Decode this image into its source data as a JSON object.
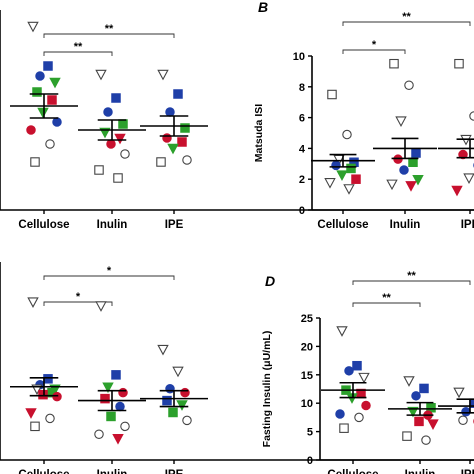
{
  "marker_styles": {
    "square": {
      "shape": "square",
      "color": "#1f3fa8",
      "filled": true
    },
    "circle": {
      "shape": "circle",
      "color": "#1f3fa8",
      "filled": true
    },
    "sq_green": {
      "shape": "square",
      "color": "#2ca02c",
      "filled": true
    },
    "tri_green": {
      "shape": "tri_down",
      "color": "#2ca02c",
      "filled": true
    },
    "circ_red": {
      "shape": "circle",
      "color": "#c8102e",
      "filled": true
    },
    "sq_red": {
      "shape": "square",
      "color": "#c8102e",
      "filled": true
    },
    "tri_red": {
      "shape": "tri_down",
      "color": "#c8102e",
      "filled": true
    },
    "tri_open": {
      "shape": "tri_down",
      "color": "#444444",
      "filled": false
    },
    "circ_open": {
      "shape": "circle",
      "color": "#444444",
      "filled": false
    },
    "sq_open": {
      "shape": "square",
      "color": "#444444",
      "filled": false
    }
  },
  "chart_data": [
    {
      "panel": "A",
      "type": "scatter",
      "label": "",
      "ylabel": "",
      "ylim": [
        0,
        10
      ],
      "yticks": [],
      "categories": [
        "Cellulose",
        "Inulin",
        "IPE"
      ],
      "means": [
        5.2,
        4.0,
        4.2
      ],
      "sems": [
        0.6,
        0.5,
        0.5
      ],
      "points": [
        [
          [
            9.2,
            "tri_open"
          ],
          [
            7.2,
            "square"
          ],
          [
            6.7,
            "circle"
          ],
          [
            6.4,
            "tri_green"
          ],
          [
            5.9,
            "sq_green"
          ],
          [
            5.5,
            "sq_red"
          ],
          [
            4.9,
            "tri_green"
          ],
          [
            4.4,
            "circle"
          ],
          [
            4.0,
            "circ_red"
          ],
          [
            3.3,
            "circ_open"
          ],
          [
            2.4,
            "sq_open"
          ]
        ],
        [
          [
            6.8,
            "tri_open"
          ],
          [
            5.6,
            "square"
          ],
          [
            4.9,
            "circle"
          ],
          [
            4.3,
            "sq_green"
          ],
          [
            3.9,
            "tri_green"
          ],
          [
            3.6,
            "tri_red"
          ],
          [
            3.3,
            "circ_red"
          ],
          [
            2.8,
            "circ_open"
          ],
          [
            2.0,
            "sq_open"
          ],
          [
            1.6,
            "sq_open"
          ]
        ],
        [
          [
            6.8,
            "tri_open"
          ],
          [
            5.8,
            "square"
          ],
          [
            4.9,
            "circle"
          ],
          [
            4.1,
            "sq_green"
          ],
          [
            3.6,
            "circ_red"
          ],
          [
            3.4,
            "sq_red"
          ],
          [
            3.1,
            "tri_green"
          ],
          [
            2.5,
            "circ_open"
          ],
          [
            2.4,
            "sq_open"
          ]
        ]
      ],
      "significance": [
        {
          "from": 0,
          "to": 2,
          "label": "**"
        },
        {
          "from": 0,
          "to": 1,
          "label": "**"
        }
      ]
    },
    {
      "panel": "B",
      "type": "scatter",
      "label": "B",
      "ylabel": "Matsuda ISI",
      "ylim": [
        0,
        10
      ],
      "yticks": [
        0,
        2,
        4,
        6,
        8,
        10
      ],
      "categories": [
        "Cellulose",
        "Inulin",
        "IPE"
      ],
      "means": [
        3.2,
        4.0,
        4.0
      ],
      "sems": [
        0.4,
        0.65,
        0.6
      ],
      "points": [
        [
          [
            7.5,
            "sq_open"
          ],
          [
            4.9,
            "circ_open"
          ],
          [
            3.3,
            "tri_open"
          ],
          [
            3.1,
            "square"
          ],
          [
            2.9,
            "circle"
          ],
          [
            2.7,
            "sq_green"
          ],
          [
            2.3,
            "tri_green"
          ],
          [
            2.0,
            "sq_red"
          ],
          [
            1.8,
            "tri_open"
          ],
          [
            1.4,
            "tri_open"
          ]
        ],
        [
          [
            9.5,
            "sq_open"
          ],
          [
            8.1,
            "circ_open"
          ],
          [
            5.8,
            "tri_open"
          ],
          [
            3.7,
            "square"
          ],
          [
            3.3,
            "circ_red"
          ],
          [
            3.1,
            "sq_green"
          ],
          [
            2.6,
            "circle"
          ],
          [
            2.0,
            "tri_green"
          ],
          [
            1.7,
            "tri_open"
          ],
          [
            1.6,
            "tri_red"
          ]
        ],
        [
          [
            9.5,
            "sq_open"
          ],
          [
            6.1,
            "circ_open"
          ],
          [
            4.6,
            "tri_open"
          ],
          [
            4.0,
            "sq_green"
          ],
          [
            3.6,
            "circ_red"
          ],
          [
            2.9,
            "circle"
          ],
          [
            2.1,
            "tri_open"
          ],
          [
            2.0,
            "square"
          ],
          [
            1.3,
            "tri_red"
          ]
        ]
      ],
      "significance": [
        {
          "from": 0,
          "to": 2,
          "label": "**"
        },
        {
          "from": 0,
          "to": 1,
          "label": "*"
        }
      ]
    },
    {
      "panel": "C",
      "type": "scatter",
      "label": "",
      "ylabel": "",
      "ylim": [
        0,
        10
      ],
      "yticks": [],
      "categories": [
        "Cellulose",
        "Inulin",
        "IPE"
      ],
      "means": [
        3.7,
        3.0,
        3.1
      ],
      "sems": [
        0.45,
        0.5,
        0.4
      ],
      "points": [
        [
          [
            8.0,
            "tri_open"
          ],
          [
            4.1,
            "square"
          ],
          [
            3.8,
            "circle"
          ],
          [
            3.6,
            "tri_green"
          ],
          [
            3.6,
            "tri_open"
          ],
          [
            3.4,
            "sq_green"
          ],
          [
            3.3,
            "sq_red"
          ],
          [
            3.2,
            "circ_red"
          ],
          [
            2.4,
            "tri_red"
          ],
          [
            2.1,
            "circ_open"
          ],
          [
            1.7,
            "sq_open"
          ]
        ],
        [
          [
            7.8,
            "tri_open"
          ],
          [
            4.3,
            "square"
          ],
          [
            3.7,
            "tri_green"
          ],
          [
            3.4,
            "circ_red"
          ],
          [
            3.1,
            "sq_red"
          ],
          [
            2.7,
            "circle"
          ],
          [
            2.2,
            "sq_green"
          ],
          [
            1.7,
            "circ_open"
          ],
          [
            1.3,
            "circ_open"
          ],
          [
            1.1,
            "tri_red"
          ]
        ],
        [
          [
            5.6,
            "tri_open"
          ],
          [
            4.5,
            "tri_open"
          ],
          [
            3.6,
            "circle"
          ],
          [
            3.4,
            "circ_red"
          ],
          [
            3.0,
            "square"
          ],
          [
            2.8,
            "tri_green"
          ],
          [
            2.4,
            "sq_green"
          ],
          [
            2.0,
            "circ_open"
          ]
        ]
      ],
      "significance": [
        {
          "from": 0,
          "to": 2,
          "label": "*"
        },
        {
          "from": 0,
          "to": 1,
          "label": "*"
        }
      ]
    },
    {
      "panel": "D",
      "type": "scatter",
      "label": "D",
      "ylabel": "Fasting Insulin (μU/mL)",
      "ylim": [
        0,
        25
      ],
      "yticks": [
        0,
        5,
        10,
        15,
        20,
        25
      ],
      "categories": [
        "Cellulose",
        "Inulin",
        "IPE"
      ],
      "means": [
        12.3,
        9.0,
        9.5
      ],
      "sems": [
        1.3,
        1.1,
        1.2
      ],
      "points": [
        [
          [
            22.8,
            "tri_open"
          ],
          [
            16.6,
            "square"
          ],
          [
            15.7,
            "circle"
          ],
          [
            14.6,
            "tri_open"
          ],
          [
            12.3,
            "sq_green"
          ],
          [
            11.7,
            "sq_red"
          ],
          [
            11.0,
            "tri_green"
          ],
          [
            9.6,
            "circ_red"
          ],
          [
            8.1,
            "circle"
          ],
          [
            7.5,
            "circ_open"
          ],
          [
            5.6,
            "sq_open"
          ]
        ],
        [
          [
            14.0,
            "tri_open"
          ],
          [
            12.6,
            "square"
          ],
          [
            11.3,
            "circle"
          ],
          [
            9.2,
            "sq_green"
          ],
          [
            8.6,
            "tri_green"
          ],
          [
            7.9,
            "circ_red"
          ],
          [
            6.8,
            "sq_red"
          ],
          [
            6.4,
            "tri_red"
          ],
          [
            4.2,
            "sq_open"
          ],
          [
            3.5,
            "circ_open"
          ]
        ],
        [
          [
            12.0,
            "tri_open"
          ],
          [
            10.0,
            "square"
          ],
          [
            8.5,
            "circle"
          ],
          [
            7.2,
            "sq_green"
          ],
          [
            7.0,
            "circ_open"
          ],
          [
            6.8,
            "circ_red"
          ]
        ]
      ],
      "significance": [
        {
          "from": 0,
          "to": 2,
          "label": "**"
        },
        {
          "from": 0,
          "to": 1,
          "label": "**"
        }
      ]
    }
  ]
}
